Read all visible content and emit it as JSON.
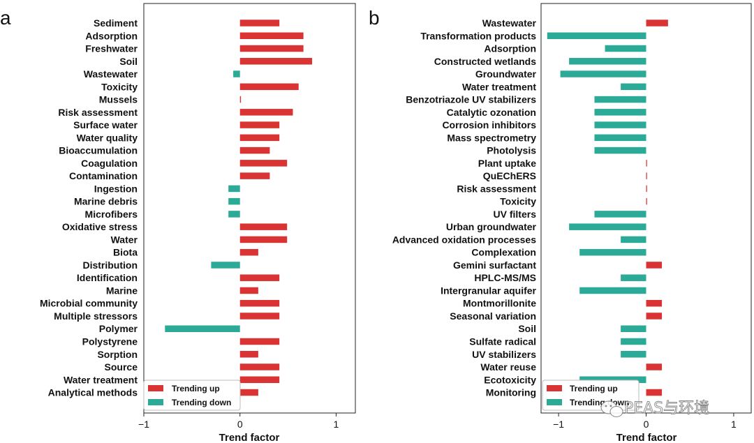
{
  "colors": {
    "up": "#d93333",
    "down": "#2baa98"
  },
  "watermark": {
    "text": "PEAS与环境"
  },
  "chart_data": [
    {
      "type": "bar",
      "orientation": "horizontal",
      "panel_label": "a",
      "xlabel": "Trend factor",
      "xlim": [
        -1.0,
        1.2
      ],
      "xticks": [
        -1,
        0,
        1
      ],
      "legend": {
        "placement": "lower-left",
        "up_label": "Trending up",
        "down_label": "Trending down"
      },
      "categories": [
        "Sediment",
        "Adsorption",
        "Freshwater",
        "Soil",
        "Wastewater",
        "Toxicity",
        "Mussels",
        "Risk assessment",
        "Surface water",
        "Water quality",
        "Bioaccumulation",
        "Coagulation",
        "Contamination",
        "Ingestion",
        "Marine debris",
        "Microfibers",
        "Oxidative stress",
        "Water",
        "Biota",
        "Distribution",
        "Identification",
        "Marine",
        "Microbial community",
        "Multiple stressors",
        "Polymer",
        "Polystyrene",
        "Sorption",
        "Source",
        "Water treatment",
        "Analytical methods"
      ],
      "values": [
        0.41,
        0.66,
        0.66,
        0.75,
        -0.07,
        0.61,
        0.01,
        0.55,
        0.41,
        0.41,
        0.31,
        0.49,
        0.31,
        -0.12,
        -0.12,
        -0.12,
        0.49,
        0.49,
        0.19,
        -0.3,
        0.41,
        0.19,
        0.41,
        0.41,
        -0.78,
        0.41,
        0.19,
        0.41,
        0.41,
        0.19
      ]
    },
    {
      "type": "bar",
      "orientation": "horizontal",
      "panel_label": "b",
      "xlabel": "Trend factor",
      "xlim": [
        -1.2,
        1.2
      ],
      "xticks": [
        -1,
        0,
        1
      ],
      "legend": {
        "placement": "lower-left",
        "up_label": "Trending up",
        "down_label": "Trending down"
      },
      "categories": [
        "Wastewater",
        "Transformation products",
        "Adsorption",
        "Constructed wetlands",
        "Groundwater",
        "Water treatment",
        "Benzotriazole UV stabilizers",
        "Catalytic ozonation",
        "Corrosion inhibitors",
        "Mass spectrometry",
        "Photolysis",
        "Plant uptake",
        "QuEChERS",
        "Risk assessment",
        "Toxicity",
        "UV filters",
        "Urban groundwater",
        "Advanced oxidation processes",
        "Complexation",
        "Gemini surfactant",
        "HPLC-MS/MS",
        "Intergranular aquifer",
        "Montmorillonite",
        "Seasonal variation",
        "Soil",
        "Sulfate radical",
        "UV stabilizers",
        "Water reuse",
        "Ecotoxicity",
        "Monitoring"
      ],
      "values": [
        0.25,
        -1.13,
        -0.47,
        -0.88,
        -0.98,
        -0.29,
        -0.59,
        -0.59,
        -0.59,
        -0.59,
        -0.59,
        0.01,
        0.01,
        0.01,
        0.01,
        -0.59,
        -0.88,
        -0.29,
        -0.76,
        0.18,
        -0.29,
        -0.76,
        0.18,
        0.18,
        -0.29,
        -0.29,
        -0.29,
        0.18,
        -0.76,
        0.18
      ]
    }
  ]
}
